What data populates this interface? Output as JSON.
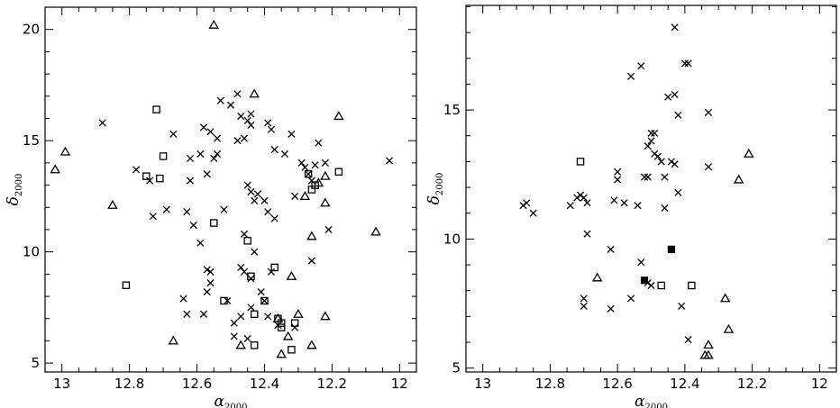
{
  "chart_data": [
    {
      "type": "scatter",
      "xlabel": "α2000",
      "ylabel": "δ2000",
      "xlim": [
        13.05,
        11.95
      ],
      "ylim": [
        4.6,
        21
      ],
      "xticks_labeled": [
        "13",
        "12.8",
        "12.6",
        "12.4",
        "12.2",
        "12"
      ],
      "yticks_labeled": [
        "5",
        "10",
        "15",
        "20"
      ],
      "series": [
        {
          "marker": "cross",
          "points": [
            [
              12.88,
              15.8
            ],
            [
              12.78,
              13.7
            ],
            [
              12.74,
              13.2
            ],
            [
              12.73,
              11.6
            ],
            [
              12.69,
              11.9
            ],
            [
              12.67,
              15.3
            ],
            [
              12.63,
              11.8
            ],
            [
              12.62,
              14.2
            ],
            [
              12.61,
              11.2
            ],
            [
              12.62,
              13.2
            ],
            [
              12.59,
              14.4
            ],
            [
              12.59,
              10.4
            ],
            [
              12.58,
              15.6
            ],
            [
              12.57,
              13.5
            ],
            [
              12.56,
              15.4
            ],
            [
              12.55,
              14.2
            ],
            [
              12.54,
              14.4
            ],
            [
              12.54,
              15.1
            ],
            [
              12.53,
              16.8
            ],
            [
              12.5,
              16.6
            ],
            [
              12.48,
              15.0
            ],
            [
              12.48,
              17.1
            ],
            [
              12.47,
              16.1
            ],
            [
              12.46,
              15.1
            ],
            [
              12.45,
              15.9
            ],
            [
              12.44,
              16.2
            ],
            [
              12.44,
              15.7
            ],
            [
              12.45,
              13.0
            ],
            [
              12.44,
              12.7
            ],
            [
              12.43,
              12.3
            ],
            [
              12.42,
              12.6
            ],
            [
              12.4,
              12.3
            ],
            [
              12.38,
              15.5
            ],
            [
              12.39,
              15.8
            ],
            [
              12.37,
              14.6
            ],
            [
              12.34,
              14.4
            ],
            [
              12.32,
              15.3
            ],
            [
              12.31,
              12.5
            ],
            [
              12.29,
              14.0
            ],
            [
              12.28,
              13.8
            ],
            [
              12.27,
              13.5
            ],
            [
              12.26,
              13.2
            ],
            [
              12.25,
              13.9
            ],
            [
              12.24,
              14.9
            ],
            [
              12.22,
              14.0
            ],
            [
              12.21,
              11.0
            ],
            [
              12.03,
              14.1
            ],
            [
              12.39,
              11.8
            ],
            [
              12.37,
              11.5
            ],
            [
              12.46,
              10.8
            ],
            [
              12.43,
              10.0
            ],
            [
              12.47,
              9.3
            ],
            [
              12.46,
              9.1
            ],
            [
              12.44,
              8.8
            ],
            [
              12.41,
              8.2
            ],
            [
              12.38,
              9.1
            ],
            [
              12.4,
              7.8
            ],
            [
              12.39,
              7.1
            ],
            [
              12.44,
              7.5
            ],
            [
              12.47,
              7.1
            ],
            [
              12.49,
              6.8
            ],
            [
              12.51,
              7.8
            ],
            [
              12.49,
              6.2
            ],
            [
              12.45,
              6.1
            ],
            [
              12.57,
              9.2
            ],
            [
              12.56,
              9.1
            ],
            [
              12.56,
              8.6
            ],
            [
              12.57,
              8.2
            ],
            [
              12.58,
              7.2
            ],
            [
              12.64,
              7.9
            ],
            [
              12.63,
              7.2
            ],
            [
              12.36,
              6.7
            ],
            [
              12.31,
              6.6
            ],
            [
              12.26,
              9.6
            ],
            [
              12.52,
              11.9
            ]
          ]
        },
        {
          "marker": "square",
          "points": [
            [
              12.72,
              16.4
            ],
            [
              12.7,
              14.3
            ],
            [
              12.75,
              13.4
            ],
            [
              12.71,
              13.3
            ],
            [
              12.55,
              11.3
            ],
            [
              12.81,
              8.5
            ],
            [
              12.45,
              10.5
            ],
            [
              12.43,
              7.2
            ],
            [
              12.44,
              8.9
            ],
            [
              12.4,
              7.8
            ],
            [
              12.37,
              9.3
            ],
            [
              12.36,
              7.0
            ],
            [
              12.35,
              6.6
            ],
            [
              12.43,
              5.8
            ],
            [
              12.32,
              5.6
            ],
            [
              12.35,
              6.8
            ],
            [
              12.31,
              6.8
            ],
            [
              12.52,
              7.8
            ],
            [
              12.27,
              13.5
            ],
            [
              12.25,
              13.0
            ],
            [
              12.26,
              12.8
            ],
            [
              12.18,
              13.6
            ]
          ]
        },
        {
          "marker": "triangle",
          "points": [
            [
              13.02,
              13.7
            ],
            [
              12.99,
              14.5
            ],
            [
              12.85,
              12.1
            ],
            [
              12.55,
              20.2
            ],
            [
              12.43,
              17.1
            ],
            [
              12.18,
              16.1
            ],
            [
              12.28,
              12.5
            ],
            [
              12.26,
              10.7
            ],
            [
              12.22,
              13.4
            ],
            [
              12.24,
              13.1
            ],
            [
              12.22,
              12.2
            ],
            [
              12.07,
              10.9
            ],
            [
              12.32,
              8.9
            ],
            [
              12.3,
              7.2
            ],
            [
              12.26,
              5.8
            ],
            [
              12.22,
              7.1
            ],
            [
              12.33,
              6.2
            ],
            [
              12.36,
              7.0
            ],
            [
              12.35,
              5.4
            ],
            [
              12.67,
              6.0
            ],
            [
              12.47,
              5.8
            ]
          ]
        }
      ]
    },
    {
      "type": "scatter",
      "xlabel": "α2000",
      "ylabel": "δ2000",
      "xlim": [
        13.05,
        11.95
      ],
      "ylim": [
        4.85,
        19.05
      ],
      "xticks_labeled": [
        "13",
        "12.8",
        "12.6",
        "12.4",
        "12.2",
        "12"
      ],
      "yticks_labeled": [
        "5",
        "10",
        "15"
      ],
      "series": [
        {
          "marker": "cross",
          "points": [
            [
              12.88,
              11.3
            ],
            [
              12.87,
              11.4
            ],
            [
              12.85,
              11.0
            ],
            [
              12.74,
              11.3
            ],
            [
              12.72,
              11.6
            ],
            [
              12.7,
              11.6
            ],
            [
              12.69,
              11.4
            ],
            [
              12.71,
              11.7
            ],
            [
              12.69,
              10.2
            ],
            [
              12.6,
              12.6
            ],
            [
              12.6,
              12.3
            ],
            [
              12.61,
              11.5
            ],
            [
              12.58,
              11.4
            ],
            [
              12.56,
              16.3
            ],
            [
              12.53,
              16.7
            ],
            [
              12.54,
              11.3
            ],
            [
              12.52,
              12.4
            ],
            [
              12.51,
              12.4
            ],
            [
              12.51,
              13.6
            ],
            [
              12.5,
              13.8
            ],
            [
              12.5,
              14.1
            ],
            [
              12.49,
              14.1
            ],
            [
              12.49,
              13.3
            ],
            [
              12.48,
              13.2
            ],
            [
              12.47,
              13.0
            ],
            [
              12.46,
              11.2
            ],
            [
              12.46,
              12.4
            ],
            [
              12.45,
              15.5
            ],
            [
              12.43,
              15.6
            ],
            [
              12.43,
              12.9
            ],
            [
              12.44,
              13.0
            ],
            [
              12.43,
              18.2
            ],
            [
              12.42,
              14.8
            ],
            [
              12.42,
              11.8
            ],
            [
              12.4,
              16.8
            ],
            [
              12.39,
              16.8
            ],
            [
              12.33,
              14.9
            ],
            [
              12.33,
              12.8
            ],
            [
              12.62,
              9.6
            ],
            [
              12.53,
              9.1
            ],
            [
              12.51,
              8.3
            ],
            [
              12.5,
              8.2
            ],
            [
              12.56,
              7.7
            ],
            [
              12.62,
              7.3
            ],
            [
              12.7,
              7.7
            ],
            [
              12.7,
              7.4
            ],
            [
              12.41,
              7.4
            ],
            [
              12.39,
              6.1
            ]
          ]
        },
        {
          "marker": "square",
          "points": [
            [
              12.71,
              13.0
            ],
            [
              12.47,
              8.2
            ],
            [
              12.38,
              8.2
            ]
          ]
        },
        {
          "marker": "filled-square",
          "points": [
            [
              12.44,
              9.6
            ],
            [
              12.52,
              8.4
            ]
          ]
        },
        {
          "marker": "triangle",
          "points": [
            [
              12.21,
              13.3
            ],
            [
              12.24,
              12.3
            ],
            [
              12.66,
              8.5
            ],
            [
              12.28,
              7.7
            ],
            [
              12.27,
              6.5
            ],
            [
              12.33,
              5.9
            ],
            [
              12.34,
              5.5
            ],
            [
              12.33,
              5.5
            ]
          ]
        }
      ]
    }
  ]
}
